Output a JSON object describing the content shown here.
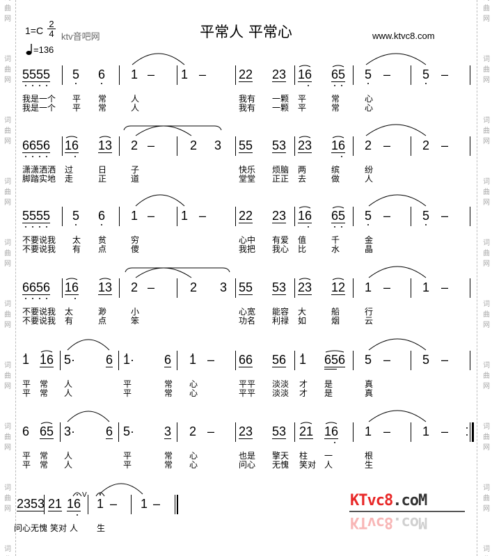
{
  "header": {
    "title": "平常人 平常心",
    "url": "www.ktvc8.com",
    "key": "1=C",
    "time_top": "2",
    "time_bottom": "4",
    "watermark_text": "ktv音吧网",
    "tempo": "=136",
    "tempo_icon": "quarter-note-icon"
  },
  "side_watermark": "词曲网",
  "logo": {
    "red": "KTvc8",
    "gray": ".coM",
    "colors": {
      "red": "#e82828",
      "gray": "#333333"
    }
  },
  "rows": [
    {
      "notes": [
        {
          "t": "5555",
          "u": 1,
          "lo": [
            0,
            1,
            2,
            3
          ]
        },
        {
          "t": "5",
          "lo": [
            0
          ]
        },
        {
          "t": "6",
          "lo": [
            0
          ]
        },
        {
          "t": "1"
        },
        {
          "t": "–"
        },
        {
          "t": "1"
        },
        {
          "t": "–"
        },
        {
          "t": "22",
          "u": 1
        },
        {
          "t": "23",
          "u": 1
        },
        {
          "t": "16",
          "u": 1,
          "lo": [
            1
          ],
          "s": 1
        },
        {
          "t": "65",
          "u": 1,
          "lo": [
            0,
            1
          ],
          "s": 1
        },
        {
          "t": "5",
          "lo": [
            0
          ]
        },
        {
          "t": "–"
        },
        {
          "t": "5",
          "lo": [
            0
          ]
        },
        {
          "t": "–"
        }
      ],
      "lyrics": [
        [
          "我是一个",
          "平",
          "常",
          "人",
          "我有",
          "一颗",
          "平",
          "常",
          "心"
        ],
        [
          "我是一个",
          "平",
          "常",
          "人",
          "我有",
          "一颗",
          "平",
          "常",
          "心"
        ]
      ]
    },
    {
      "notes": [
        {
          "t": "6656",
          "u": 1,
          "lo": [
            0,
            1,
            2,
            3
          ]
        },
        {
          "t": "16",
          "u": 1,
          "lo": [
            1
          ],
          "s": 1
        },
        {
          "t": "13",
          "u": 1,
          "s": 1
        },
        {
          "t": "2"
        },
        {
          "t": "–"
        },
        {
          "t": "2"
        },
        {
          "t": "3"
        },
        {
          "t": "55",
          "u": 1
        },
        {
          "t": "53",
          "u": 1
        },
        {
          "t": "23",
          "u": 1,
          "s": 1
        },
        {
          "t": "16",
          "u": 1,
          "lo": [
            1
          ],
          "s": 1
        },
        {
          "t": "2"
        },
        {
          "t": "–"
        },
        {
          "t": "2"
        },
        {
          "t": "–"
        }
      ],
      "lyrics": [
        [
          "潇潇洒洒",
          "过",
          "日",
          "子",
          "快乐",
          "烦脑",
          "两",
          "缤",
          "纷"
        ],
        [
          "脚踏实地",
          "走",
          "正",
          "道",
          "堂堂",
          "正正",
          "去",
          "做",
          "人"
        ]
      ]
    },
    {
      "notes": [
        {
          "t": "5555",
          "u": 1,
          "lo": [
            0,
            1,
            2,
            3
          ]
        },
        {
          "t": "5",
          "lo": [
            0
          ]
        },
        {
          "t": "6",
          "lo": [
            0
          ]
        },
        {
          "t": "1"
        },
        {
          "t": "–"
        },
        {
          "t": "1"
        },
        {
          "t": "–"
        },
        {
          "t": "22",
          "u": 1
        },
        {
          "t": "23",
          "u": 1
        },
        {
          "t": "16",
          "u": 1,
          "lo": [
            1
          ],
          "s": 1
        },
        {
          "t": "65",
          "u": 1,
          "lo": [
            0,
            1
          ],
          "s": 1
        },
        {
          "t": "5",
          "lo": [
            0
          ]
        },
        {
          "t": "–"
        },
        {
          "t": "5",
          "lo": [
            0
          ]
        },
        {
          "t": "–"
        }
      ],
      "lyrics": [
        [
          "不要说我",
          "太",
          "贫",
          "穷",
          "心中",
          "有爱",
          "值",
          "千",
          "金"
        ],
        [
          "不要说我",
          "有",
          "点",
          "傻",
          "我把",
          "我心",
          "比",
          "水",
          "晶"
        ]
      ]
    },
    {
      "notes": [
        {
          "t": "6656",
          "u": 1,
          "lo": [
            0,
            1,
            2,
            3
          ]
        },
        {
          "t": "16",
          "u": 1,
          "lo": [
            1
          ],
          "s": 1
        },
        {
          "t": "13",
          "u": 1,
          "s": 1
        },
        {
          "t": "2"
        },
        {
          "t": "–"
        },
        {
          "t": "2"
        },
        {
          "t": "3"
        },
        {
          "t": "55",
          "u": 1
        },
        {
          "t": "53",
          "u": 1
        },
        {
          "t": "23",
          "u": 1,
          "s": 1
        },
        {
          "t": "12",
          "u": 1,
          "s": 1
        },
        {
          "t": "1"
        },
        {
          "t": "–"
        },
        {
          "t": "1"
        },
        {
          "t": "–"
        }
      ],
      "lyrics": [
        [
          "不要说我",
          "太",
          "渺",
          "小",
          "心宽",
          "能容",
          "大",
          "船",
          "行"
        ],
        [
          "不要说我",
          "有",
          "点",
          "笨",
          "功名",
          "利禄",
          "如",
          "烟",
          "云"
        ]
      ]
    },
    {
      "notes": [
        {
          "t": "1",
          "hi": [
            0
          ]
        },
        {
          "t": "16",
          "u": 1,
          "hi": [
            0
          ],
          "s": 1
        },
        {
          "t": "5·"
        },
        {
          "t": "6",
          "u": 1
        },
        {
          "t": "1·",
          "hi": [
            0
          ]
        },
        {
          "t": "6",
          "u": 1
        },
        {
          "t": "1",
          "hi": [
            0
          ]
        },
        {
          "t": "–"
        },
        {
          "t": "66",
          "u": 1
        },
        {
          "t": "56",
          "u": 1
        },
        {
          "t": "1",
          "hi": [
            0
          ]
        },
        {
          "t": "656",
          "u": 2,
          "s": 1
        },
        {
          "t": "5"
        },
        {
          "t": "–"
        },
        {
          "t": "5"
        },
        {
          "t": "–"
        }
      ],
      "lyrics": [
        [
          "平",
          "常",
          "人",
          "平",
          "常",
          "心",
          "平平",
          "淡淡",
          "才",
          "是",
          "真"
        ],
        [
          "平",
          "常",
          "人",
          "平",
          "常",
          "心",
          "平平",
          "淡淡",
          "才",
          "是",
          "真"
        ]
      ]
    },
    {
      "notes": [
        {
          "t": "6"
        },
        {
          "t": "65",
          "u": 1,
          "s": 1
        },
        {
          "t": "3·"
        },
        {
          "t": "6",
          "u": 1
        },
        {
          "t": "5·"
        },
        {
          "t": "3",
          "u": 1
        },
        {
          "t": "2"
        },
        {
          "t": "–"
        },
        {
          "t": "23",
          "u": 1
        },
        {
          "t": "53",
          "u": 1
        },
        {
          "t": "21",
          "u": 1,
          "s": 1
        },
        {
          "t": "16",
          "u": 1,
          "lo": [
            1
          ],
          "s": 1
        },
        {
          "t": "1"
        },
        {
          "t": "–"
        },
        {
          "t": "1"
        },
        {
          "t": "–"
        }
      ],
      "lyrics": [
        [
          "平",
          "常",
          "人",
          "平",
          "常",
          "心",
          "也是",
          "擎天",
          "柱",
          "一",
          "根"
        ],
        [
          "平",
          "常",
          "人",
          "平",
          "常",
          "心",
          "问心",
          "无愧",
          "笑对",
          "人",
          "生"
        ]
      ]
    },
    {
      "notes": [
        {
          "t": "2353",
          "u": 1
        },
        {
          "t": "21",
          "u": 1
        },
        {
          "t": "16",
          "u": 1,
          "lo": [
            1
          ],
          "f": 1,
          "breath": "V"
        },
        {
          "t": "1",
          "f": 1
        },
        {
          "t": "–"
        },
        {
          "t": "1"
        },
        {
          "t": "–"
        }
      ],
      "lyrics": [
        [
          "问心无愧",
          "笑对",
          "人",
          "生"
        ]
      ]
    }
  ]
}
